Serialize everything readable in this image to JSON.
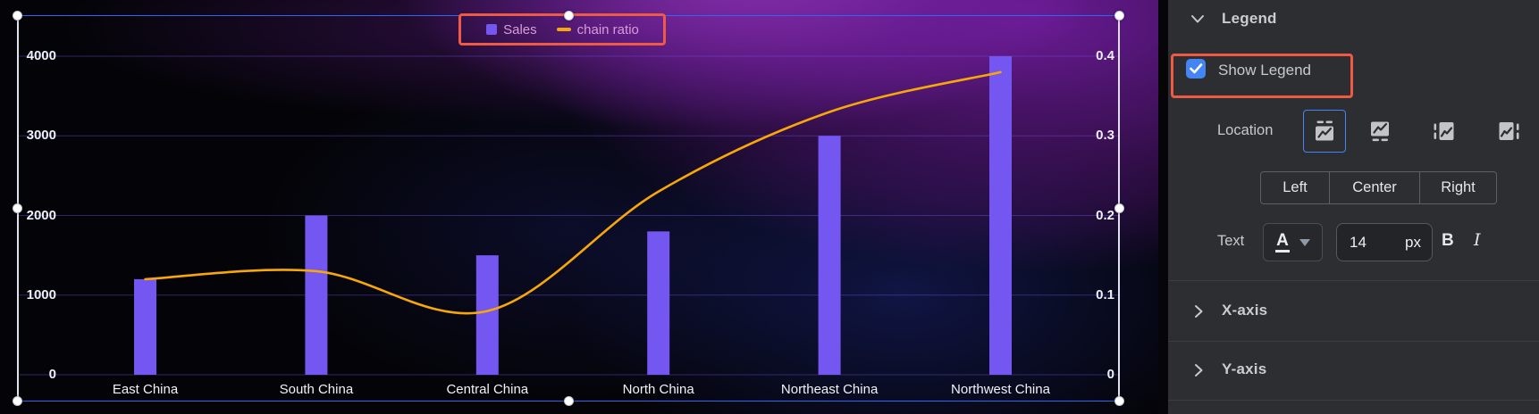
{
  "chart_data": {
    "type": "combo-bar-line",
    "categories": [
      "East China",
      "South China",
      "Central China",
      "North China",
      "Northeast China",
      "Northwest China"
    ],
    "series": [
      {
        "name": "Sales",
        "type": "bar",
        "axis": "left",
        "color": "#7456f0",
        "values": [
          1200,
          2000,
          1500,
          1800,
          3000,
          4000
        ]
      },
      {
        "name": "chain ratio",
        "type": "line",
        "axis": "right",
        "color": "#f7a708",
        "values": [
          0.12,
          0.13,
          0.08,
          0.23,
          0.33,
          0.38
        ]
      }
    ],
    "left_axis": {
      "min": 0,
      "max": 4000,
      "ticks": [
        4000,
        3000,
        2000,
        1000,
        0
      ]
    },
    "right_axis": {
      "min": 0,
      "max": 0.4,
      "ticks": [
        0.4,
        0.3,
        0.2,
        0.1,
        0
      ]
    },
    "legend": {
      "items": [
        "Sales",
        "chain ratio"
      ],
      "position": "top-center"
    },
    "grid": true
  },
  "panel": {
    "sections": {
      "legend": "Legend",
      "x_axis": "X-axis",
      "y_axis": "Y-axis"
    },
    "show_legend_label": "Show Legend",
    "show_legend_checked": true,
    "location_label": "Location",
    "location_options": [
      "legend-top",
      "legend-bottom",
      "legend-left",
      "legend-right"
    ],
    "location_selected": "legend-top",
    "align_options": [
      "Left",
      "Center",
      "Right"
    ],
    "text_label": "Text",
    "text_color_letter": "A",
    "font_size": "14",
    "font_size_unit": "px",
    "bold_label": "B",
    "italic_label": "I"
  },
  "colors": {
    "bar": "#7456f0",
    "line": "#f7a708",
    "selection": "#2f66f5",
    "annotation": "#ef5a44",
    "checkbox": "#4385f5",
    "panel_bg": "#2c2e31",
    "legend_text": "#d89dd8"
  }
}
